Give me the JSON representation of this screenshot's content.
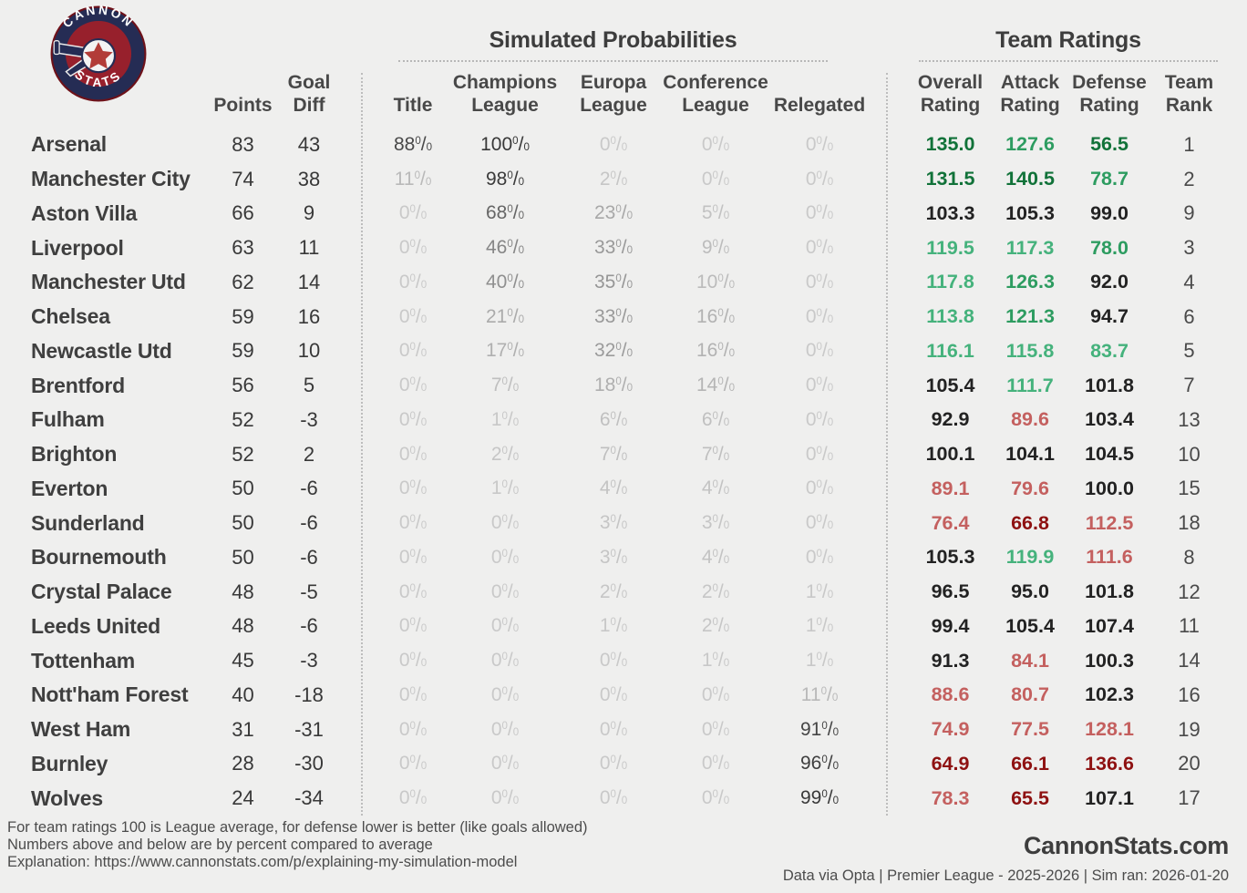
{
  "logo": {
    "top_text": "CANNON",
    "bottom_text": "STATS"
  },
  "header": {
    "sim_title": "Simulated Probabilities",
    "ratings_title": "Team Ratings",
    "left_columns": [
      "",
      "Points",
      "Goal Diff"
    ],
    "prob_columns": [
      "Title",
      "Champions League",
      "Europa League",
      "Conference League",
      "Relegated"
    ],
    "rating_columns": [
      "Overall Rating",
      "Attack Rating",
      "Defense Rating",
      "Team Rank"
    ]
  },
  "colors": {
    "background": "#efefee",
    "text_dark": "#3d3d3d",
    "prob_min": "#c9c9c9",
    "prob_max": "#383838",
    "green_light": "#45b27c",
    "green_mid": "#2d9c60",
    "green_dark": "#117239",
    "red_light": "#c4605f",
    "red_dark": "#8e1111",
    "logo_navy": "#252c54",
    "logo_red": "#97202c"
  },
  "chart_data": {
    "type": "table",
    "columns": [
      "Team",
      "Points",
      "Goal Diff",
      "Title %",
      "Champions League %",
      "Europa League %",
      "Conference League %",
      "Relegated %",
      "Overall Rating",
      "Attack Rating",
      "Defense Rating",
      "Team Rank"
    ],
    "rows": [
      {
        "name": "Arsenal",
        "points": 83,
        "goal_diff": 43,
        "title": 88,
        "champions": 100,
        "europa": 0,
        "conference": 0,
        "relegated": 0,
        "overall": 135.0,
        "attack": 127.6,
        "defense": 56.5,
        "rank": 1
      },
      {
        "name": "Manchester City",
        "points": 74,
        "goal_diff": 38,
        "title": 11,
        "champions": 98,
        "europa": 2,
        "conference": 0,
        "relegated": 0,
        "overall": 131.5,
        "attack": 140.5,
        "defense": 78.7,
        "rank": 2
      },
      {
        "name": "Aston Villa",
        "points": 66,
        "goal_diff": 9,
        "title": 0,
        "champions": 68,
        "europa": 23,
        "conference": 5,
        "relegated": 0,
        "overall": 103.3,
        "attack": 105.3,
        "defense": 99.0,
        "rank": 9
      },
      {
        "name": "Liverpool",
        "points": 63,
        "goal_diff": 11,
        "title": 0,
        "champions": 46,
        "europa": 33,
        "conference": 9,
        "relegated": 0,
        "overall": 119.5,
        "attack": 117.3,
        "defense": 78.0,
        "rank": 3
      },
      {
        "name": "Manchester Utd",
        "points": 62,
        "goal_diff": 14,
        "title": 0,
        "champions": 40,
        "europa": 35,
        "conference": 10,
        "relegated": 0,
        "overall": 117.8,
        "attack": 126.3,
        "defense": 92.0,
        "rank": 4
      },
      {
        "name": "Chelsea",
        "points": 59,
        "goal_diff": 16,
        "title": 0,
        "champions": 21,
        "europa": 33,
        "conference": 16,
        "relegated": 0,
        "overall": 113.8,
        "attack": 121.3,
        "defense": 94.7,
        "rank": 6
      },
      {
        "name": "Newcastle Utd",
        "points": 59,
        "goal_diff": 10,
        "title": 0,
        "champions": 17,
        "europa": 32,
        "conference": 16,
        "relegated": 0,
        "overall": 116.1,
        "attack": 115.8,
        "defense": 83.7,
        "rank": 5
      },
      {
        "name": "Brentford",
        "points": 56,
        "goal_diff": 5,
        "title": 0,
        "champions": 7,
        "europa": 18,
        "conference": 14,
        "relegated": 0,
        "overall": 105.4,
        "attack": 111.7,
        "defense": 101.8,
        "rank": 7
      },
      {
        "name": "Fulham",
        "points": 52,
        "goal_diff": -3,
        "title": 0,
        "champions": 1,
        "europa": 6,
        "conference": 6,
        "relegated": 0,
        "overall": 92.9,
        "attack": 89.6,
        "defense": 103.4,
        "rank": 13
      },
      {
        "name": "Brighton",
        "points": 52,
        "goal_diff": 2,
        "title": 0,
        "champions": 2,
        "europa": 7,
        "conference": 7,
        "relegated": 0,
        "overall": 100.1,
        "attack": 104.1,
        "defense": 104.5,
        "rank": 10
      },
      {
        "name": "Everton",
        "points": 50,
        "goal_diff": -6,
        "title": 0,
        "champions": 1,
        "europa": 4,
        "conference": 4,
        "relegated": 0,
        "overall": 89.1,
        "attack": 79.6,
        "defense": 100.0,
        "rank": 15
      },
      {
        "name": "Sunderland",
        "points": 50,
        "goal_diff": -6,
        "title": 0,
        "champions": 0,
        "europa": 3,
        "conference": 3,
        "relegated": 0,
        "overall": 76.4,
        "attack": 66.8,
        "defense": 112.5,
        "rank": 18
      },
      {
        "name": "Bournemouth",
        "points": 50,
        "goal_diff": -6,
        "title": 0,
        "champions": 0,
        "europa": 3,
        "conference": 4,
        "relegated": 0,
        "overall": 105.3,
        "attack": 119.9,
        "defense": 111.6,
        "rank": 8
      },
      {
        "name": "Crystal Palace",
        "points": 48,
        "goal_diff": -5,
        "title": 0,
        "champions": 0,
        "europa": 2,
        "conference": 2,
        "relegated": 1,
        "overall": 96.5,
        "attack": 95.0,
        "defense": 101.8,
        "rank": 12
      },
      {
        "name": "Leeds United",
        "points": 48,
        "goal_diff": -6,
        "title": 0,
        "champions": 0,
        "europa": 1,
        "conference": 2,
        "relegated": 1,
        "overall": 99.4,
        "attack": 105.4,
        "defense": 107.4,
        "rank": 11
      },
      {
        "name": "Tottenham",
        "points": 45,
        "goal_diff": -3,
        "title": 0,
        "champions": 0,
        "europa": 0,
        "conference": 1,
        "relegated": 1,
        "overall": 91.3,
        "attack": 84.1,
        "defense": 100.3,
        "rank": 14
      },
      {
        "name": "Nott'ham Forest",
        "points": 40,
        "goal_diff": -18,
        "title": 0,
        "champions": 0,
        "europa": 0,
        "conference": 0,
        "relegated": 11,
        "overall": 88.6,
        "attack": 80.7,
        "defense": 102.3,
        "rank": 16
      },
      {
        "name": "West Ham",
        "points": 31,
        "goal_diff": -31,
        "title": 0,
        "champions": 0,
        "europa": 0,
        "conference": 0,
        "relegated": 91,
        "overall": 74.9,
        "attack": 77.5,
        "defense": 128.1,
        "rank": 19
      },
      {
        "name": "Burnley",
        "points": 28,
        "goal_diff": -30,
        "title": 0,
        "champions": 0,
        "europa": 0,
        "conference": 0,
        "relegated": 96,
        "overall": 64.9,
        "attack": 66.1,
        "defense": 136.6,
        "rank": 20
      },
      {
        "name": "Wolves",
        "points": 24,
        "goal_diff": -34,
        "title": 0,
        "champions": 0,
        "europa": 0,
        "conference": 0,
        "relegated": 99,
        "overall": 78.3,
        "attack": 65.5,
        "defense": 107.1,
        "rank": 17
      }
    ]
  },
  "footer": {
    "note_lines": [
      "For team ratings 100 is League average, for defense lower is better (like goals allowed)",
      "Numbers above and below are by percent compared to average",
      "Explanation: https://www.cannonstats.com/p/explaining-my-simulation-model"
    ],
    "site": "CannonStats.com",
    "meta": "Data via Opta | Premier League - 2025-2026 | Sim ran: 2026-01-20"
  }
}
